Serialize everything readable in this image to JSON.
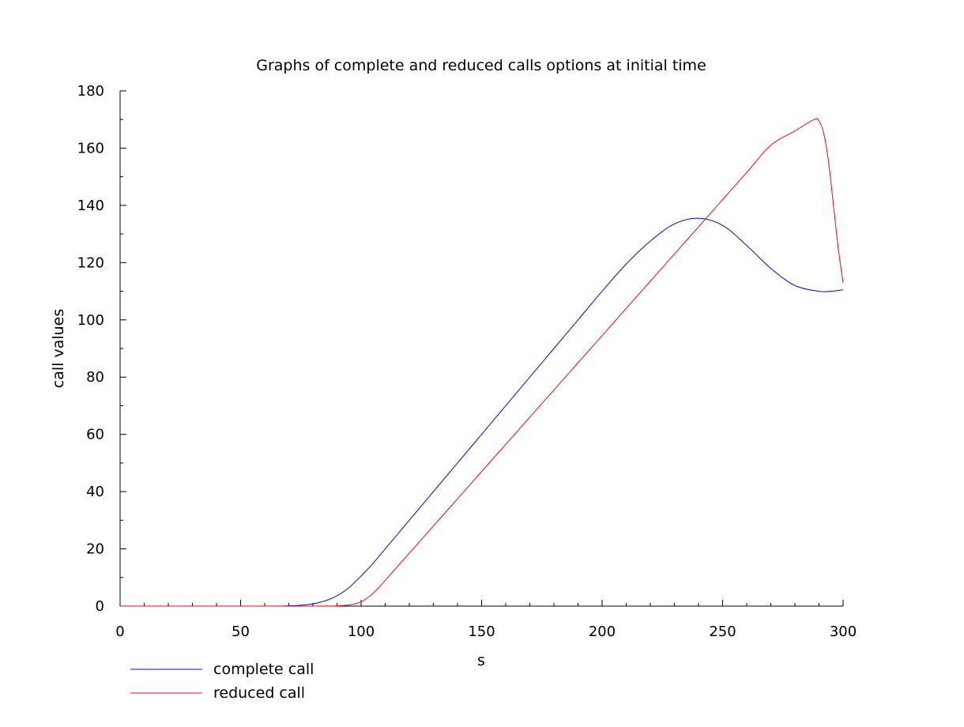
{
  "chart_data": {
    "type": "line",
    "title": "Graphs of complete and reduced calls options at initial time",
    "xlabel": "s",
    "ylabel": "call values",
    "xlim": [
      0,
      300
    ],
    "ylim": [
      0,
      180
    ],
    "xticks": [
      0,
      50,
      100,
      150,
      200,
      250,
      300
    ],
    "xtick_labels": [
      "0",
      "50",
      "100",
      "150",
      "200",
      "250",
      "300"
    ],
    "yticks": [
      0,
      20,
      40,
      60,
      80,
      100,
      120,
      140,
      160,
      180
    ],
    "ytick_labels": [
      "0",
      "20",
      "40",
      "60",
      "80",
      "100",
      "120",
      "140",
      "160",
      "180"
    ],
    "grid": false,
    "legend_position": "bottom-left, below plot",
    "series": [
      {
        "name": "complete call",
        "color": "#0000ff",
        "x": [
          0,
          60,
          70,
          75,
          80,
          85,
          90,
          95,
          100,
          105,
          110,
          120,
          130,
          140,
          150,
          160,
          170,
          180,
          190,
          200,
          210,
          220,
          230,
          240,
          250,
          260,
          270,
          280,
          290,
          295,
          300
        ],
        "y": [
          0,
          0,
          0.1,
          0.3,
          0.8,
          1.8,
          3.6,
          6.5,
          10.5,
          15,
          20,
          30,
          40,
          50,
          60,
          70,
          80,
          90,
          100,
          110,
          119.5,
          127.5,
          133.5,
          135.5,
          133,
          126,
          118,
          112,
          110,
          110,
          110.5
        ]
      },
      {
        "name": "reduced call",
        "color": "#ff0000",
        "x": [
          0,
          80,
          90,
          95,
          100,
          105,
          110,
          120,
          130,
          140,
          150,
          160,
          170,
          180,
          190,
          200,
          210,
          220,
          230,
          240,
          250,
          260,
          270,
          280,
          288,
          290,
          292,
          294,
          296,
          298,
          300
        ],
        "y": [
          0,
          0,
          0.1,
          0.4,
          1.5,
          4.5,
          9,
          18.5,
          28,
          37.5,
          47,
          56.5,
          66,
          75.5,
          85,
          94.5,
          104,
          113.5,
          123,
          132.5,
          142,
          151.5,
          161,
          166,
          170,
          169.5,
          165,
          155,
          140,
          125,
          113
        ]
      }
    ]
  }
}
